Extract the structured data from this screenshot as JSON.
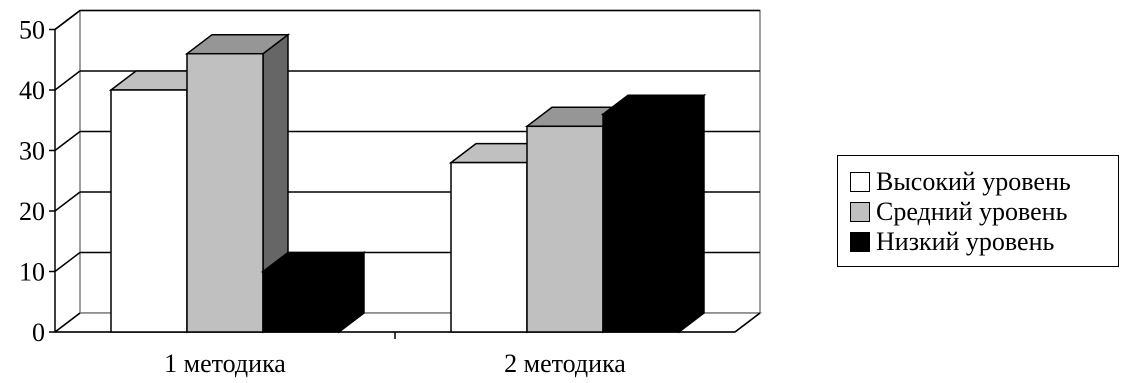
{
  "chart_data": {
    "type": "bar",
    "categories": [
      "1 методика",
      "2 методика"
    ],
    "series": [
      {
        "name": "Высокий уровень",
        "values": [
          40,
          28
        ],
        "color": "#ffffff",
        "side": "#ffffff",
        "top": "#c0c0c0"
      },
      {
        "name": "Средний уровень",
        "values": [
          46,
          34
        ],
        "color": "#c0c0c0",
        "side": "#666666",
        "top": "#969696"
      },
      {
        "name": "Низкий уровень",
        "values": [
          10,
          36
        ],
        "color": "#000000",
        "side": "#000000",
        "top": "#000000"
      }
    ],
    "ylim": [
      0,
      50
    ],
    "yticks": [
      "0",
      "10",
      "20",
      "30",
      "40",
      "50"
    ],
    "legend_position": "right",
    "grid": true
  }
}
